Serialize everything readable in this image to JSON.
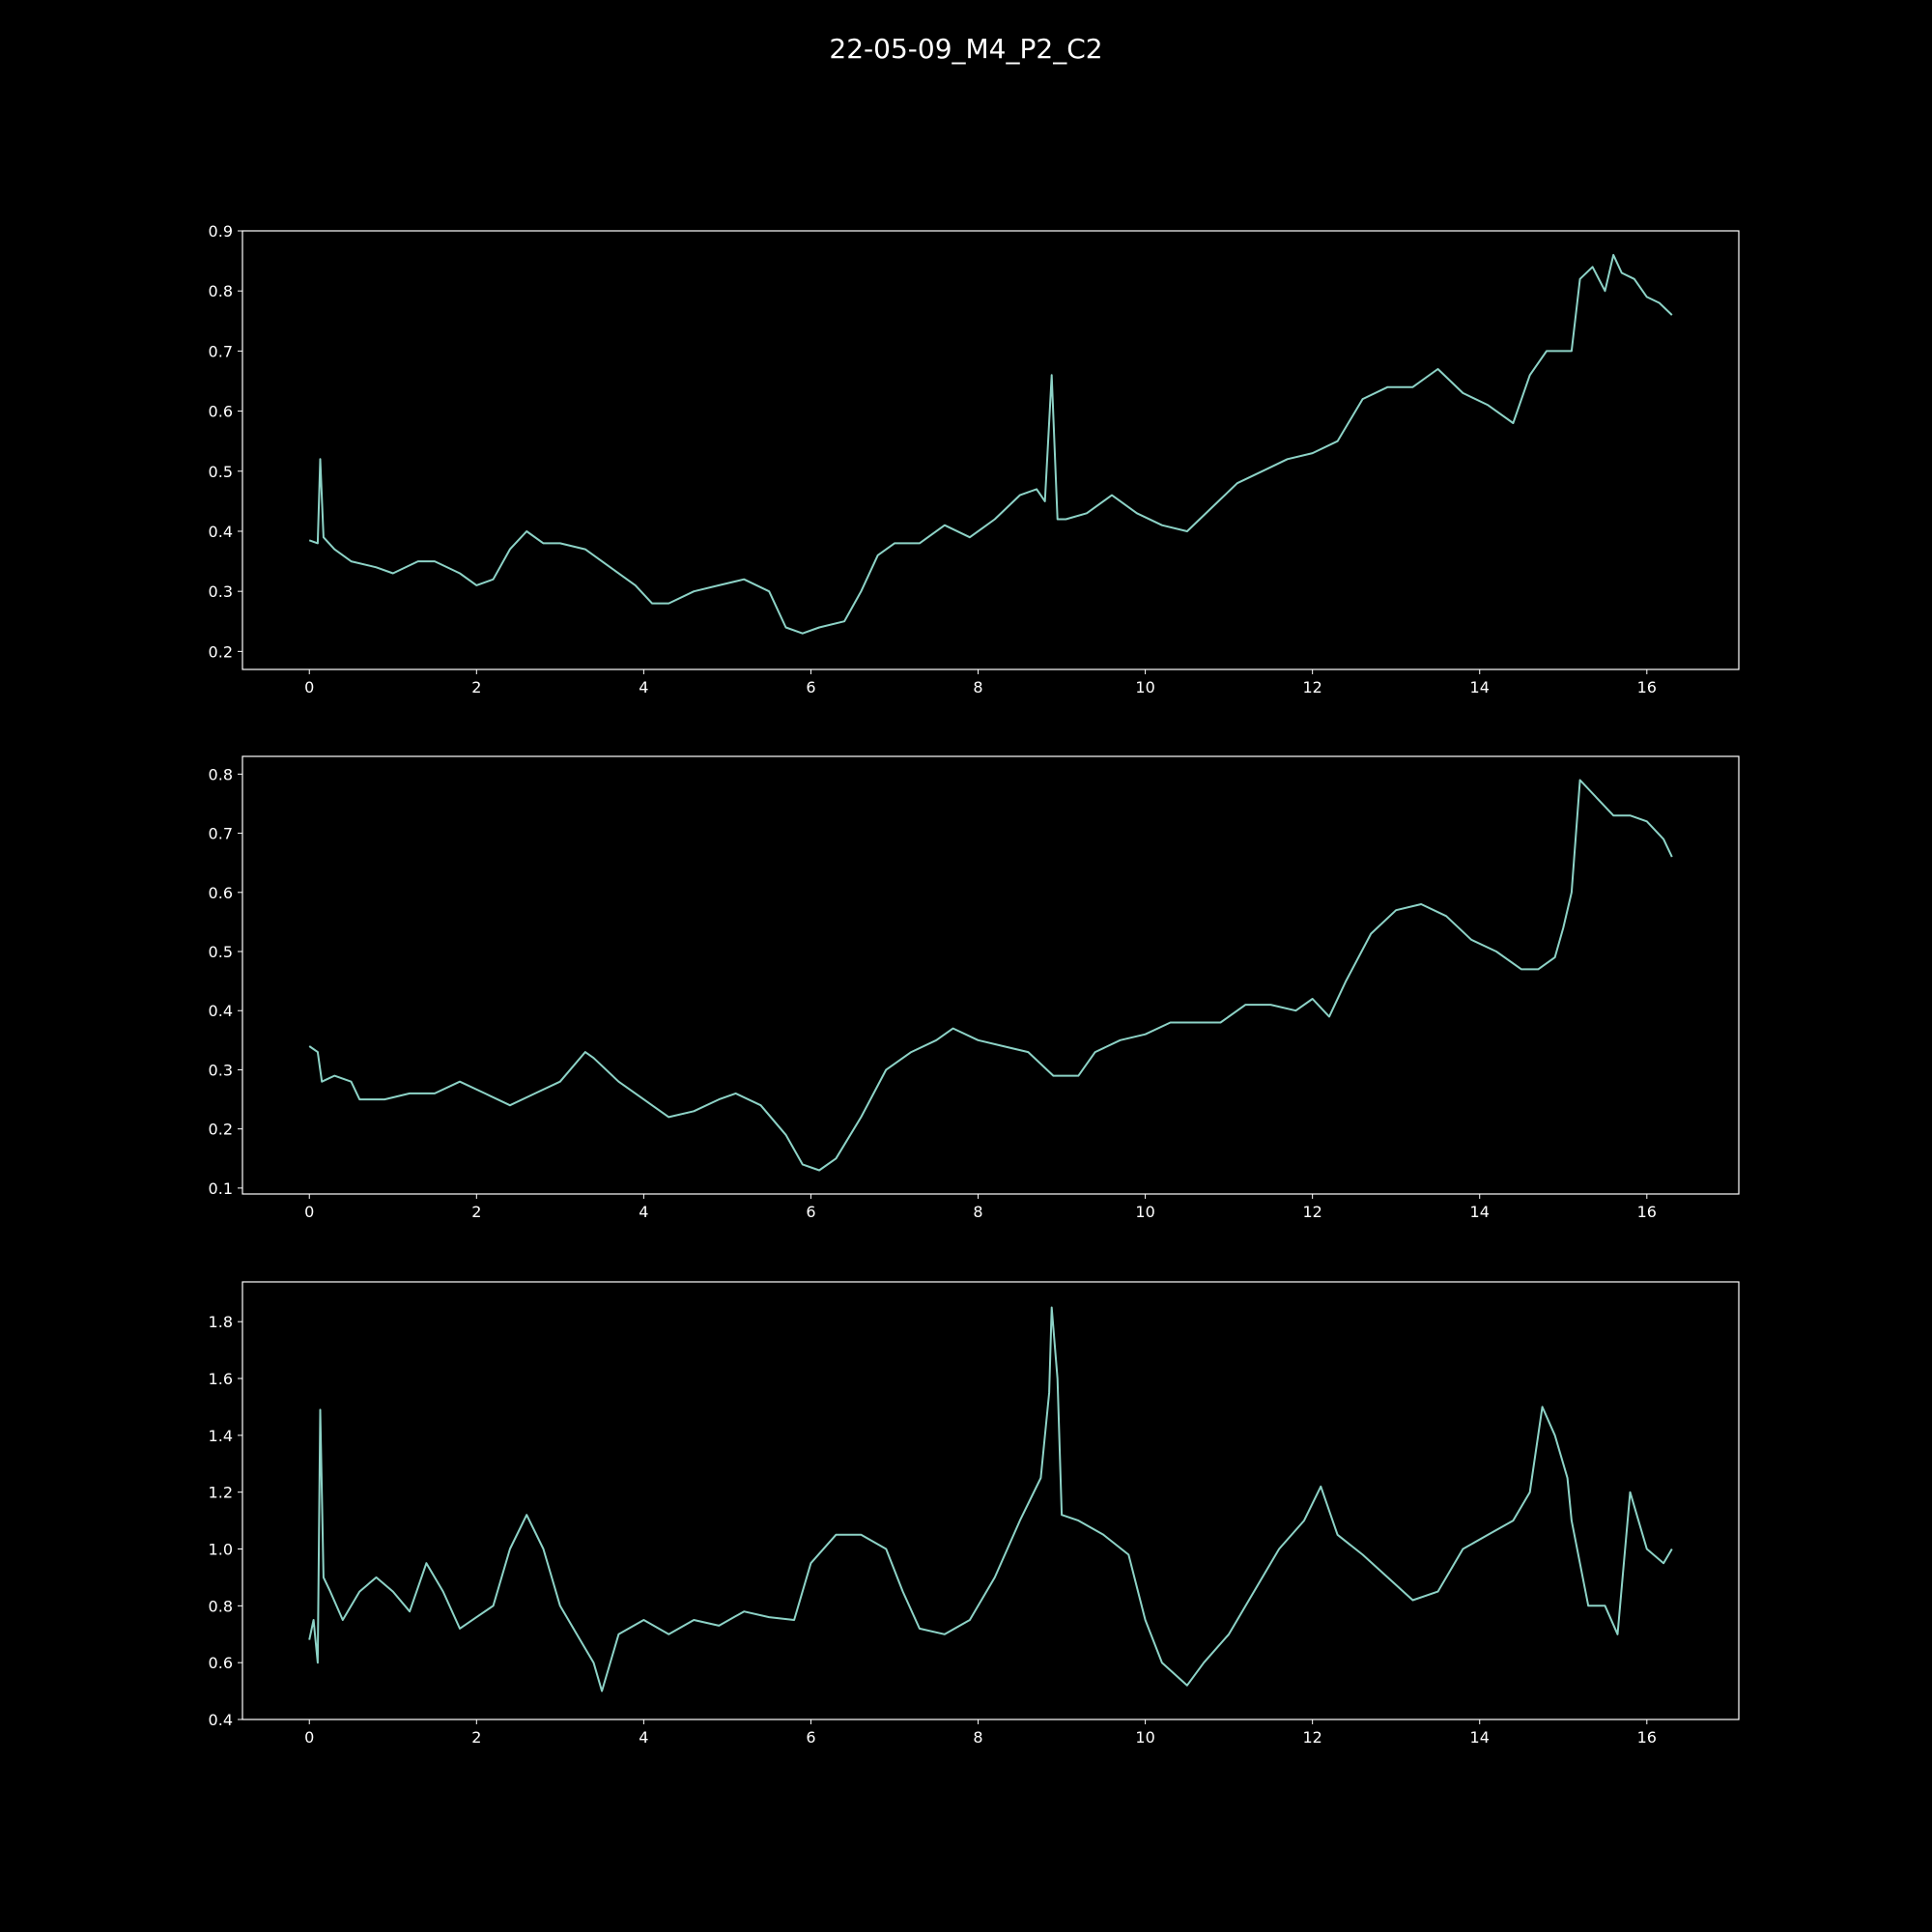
{
  "figure": {
    "title": "22-05-09_M4_P2_C2",
    "background": "#000000",
    "foreground": "#ffffff",
    "line_color": "#8dd3c7"
  },
  "chart_data": [
    {
      "type": "line",
      "xlim": [
        -0.8,
        17.1
      ],
      "ylim": [
        0.17,
        0.9
      ],
      "xticks": [
        0,
        2,
        4,
        6,
        8,
        10,
        12,
        14,
        16
      ],
      "yticks": [
        0.2,
        0.3,
        0.4,
        0.5,
        0.6,
        0.7,
        0.8,
        0.9
      ],
      "ytick_labels": [
        "0.2",
        "0.3",
        "0.4",
        "0.5",
        "0.6",
        "0.7",
        "0.8",
        "0.9"
      ],
      "series": [
        {
          "x": [
            0,
            0.1,
            0.13,
            0.17,
            0.3,
            0.5,
            0.8,
            1.0,
            1.3,
            1.5,
            1.8,
            2.0,
            2.2,
            2.4,
            2.6,
            2.8,
            3.0,
            3.3,
            3.6,
            3.9,
            4.1,
            4.3,
            4.6,
            4.9,
            5.2,
            5.5,
            5.7,
            5.9,
            6.1,
            6.4,
            6.6,
            6.8,
            7.0,
            7.3,
            7.6,
            7.9,
            8.2,
            8.5,
            8.7,
            8.8,
            8.88,
            8.95,
            9.05,
            9.3,
            9.6,
            9.9,
            10.2,
            10.5,
            10.8,
            11.1,
            11.4,
            11.7,
            12.0,
            12.3,
            12.6,
            12.9,
            13.2,
            13.5,
            13.8,
            14.1,
            14.4,
            14.6,
            14.8,
            15.0,
            15.1,
            15.2,
            15.35,
            15.5,
            15.6,
            15.7,
            15.85,
            16.0,
            16.15,
            16.3
          ],
          "y": [
            0.385,
            0.38,
            0.52,
            0.39,
            0.37,
            0.35,
            0.34,
            0.33,
            0.35,
            0.35,
            0.33,
            0.31,
            0.32,
            0.37,
            0.4,
            0.38,
            0.38,
            0.37,
            0.34,
            0.31,
            0.28,
            0.28,
            0.3,
            0.31,
            0.32,
            0.3,
            0.24,
            0.23,
            0.24,
            0.25,
            0.3,
            0.36,
            0.38,
            0.38,
            0.41,
            0.39,
            0.42,
            0.46,
            0.47,
            0.45,
            0.66,
            0.42,
            0.42,
            0.43,
            0.46,
            0.43,
            0.41,
            0.4,
            0.44,
            0.48,
            0.5,
            0.52,
            0.53,
            0.55,
            0.62,
            0.64,
            0.64,
            0.67,
            0.63,
            0.61,
            0.58,
            0.66,
            0.7,
            0.7,
            0.7,
            0.82,
            0.84,
            0.8,
            0.86,
            0.83,
            0.82,
            0.79,
            0.78,
            0.76
          ]
        }
      ]
    },
    {
      "type": "line",
      "xlim": [
        -0.8,
        17.1
      ],
      "ylim": [
        0.09,
        0.83
      ],
      "xticks": [
        0,
        2,
        4,
        6,
        8,
        10,
        12,
        14,
        16
      ],
      "yticks": [
        0.1,
        0.2,
        0.3,
        0.4,
        0.5,
        0.6,
        0.7,
        0.8
      ],
      "ytick_labels": [
        "0.1",
        "0.2",
        "0.3",
        "0.4",
        "0.5",
        "0.6",
        "0.7",
        "0.8"
      ],
      "series": [
        {
          "x": [
            0,
            0.1,
            0.15,
            0.3,
            0.5,
            0.6,
            0.9,
            1.2,
            1.5,
            1.8,
            2.1,
            2.4,
            2.7,
            3.0,
            3.3,
            3.4,
            3.7,
            4.0,
            4.3,
            4.6,
            4.9,
            5.1,
            5.4,
            5.7,
            5.9,
            6.1,
            6.3,
            6.6,
            6.9,
            7.2,
            7.5,
            7.7,
            8.0,
            8.3,
            8.6,
            8.9,
            9.2,
            9.4,
            9.7,
            10.0,
            10.3,
            10.6,
            10.9,
            11.2,
            11.5,
            11.8,
            12.0,
            12.2,
            12.4,
            12.7,
            13.0,
            13.3,
            13.6,
            13.9,
            14.2,
            14.5,
            14.7,
            14.9,
            15.0,
            15.1,
            15.2,
            15.4,
            15.6,
            15.8,
            16.0,
            16.2,
            16.3
          ],
          "y": [
            0.34,
            0.33,
            0.28,
            0.29,
            0.28,
            0.25,
            0.25,
            0.26,
            0.26,
            0.28,
            0.26,
            0.24,
            0.26,
            0.28,
            0.33,
            0.32,
            0.28,
            0.25,
            0.22,
            0.23,
            0.25,
            0.26,
            0.24,
            0.19,
            0.14,
            0.13,
            0.15,
            0.22,
            0.3,
            0.33,
            0.35,
            0.37,
            0.35,
            0.34,
            0.33,
            0.29,
            0.29,
            0.33,
            0.35,
            0.36,
            0.38,
            0.38,
            0.38,
            0.41,
            0.41,
            0.4,
            0.42,
            0.39,
            0.45,
            0.53,
            0.57,
            0.58,
            0.56,
            0.52,
            0.5,
            0.47,
            0.47,
            0.49,
            0.54,
            0.6,
            0.79,
            0.76,
            0.73,
            0.73,
            0.72,
            0.69,
            0.66
          ]
        }
      ]
    },
    {
      "type": "line",
      "xlim": [
        -0.8,
        17.1
      ],
      "ylim": [
        0.4,
        1.94
      ],
      "xticks": [
        0,
        2,
        4,
        6,
        8,
        10,
        12,
        14,
        16
      ],
      "yticks": [
        0.4,
        0.6,
        0.8,
        1.0,
        1.2,
        1.4,
        1.6,
        1.8
      ],
      "ytick_labels": [
        "0.4",
        "0.6",
        "0.8",
        "1.0",
        "1.2",
        "1.4",
        "1.6",
        "1.8"
      ],
      "series": [
        {
          "x": [
            0,
            0.05,
            0.1,
            0.13,
            0.17,
            0.25,
            0.4,
            0.6,
            0.8,
            1.0,
            1.2,
            1.4,
            1.6,
            1.8,
            2.0,
            2.2,
            2.4,
            2.6,
            2.8,
            3.0,
            3.2,
            3.4,
            3.5,
            3.7,
            4.0,
            4.3,
            4.6,
            4.9,
            5.2,
            5.5,
            5.8,
            6.0,
            6.3,
            6.6,
            6.9,
            7.1,
            7.3,
            7.6,
            7.9,
            8.2,
            8.5,
            8.75,
            8.85,
            8.88,
            8.95,
            9.0,
            9.2,
            9.5,
            9.8,
            10.0,
            10.2,
            10.5,
            10.7,
            11.0,
            11.3,
            11.6,
            11.9,
            12.1,
            12.3,
            12.6,
            12.9,
            13.2,
            13.5,
            13.8,
            14.1,
            14.4,
            14.6,
            14.75,
            14.9,
            15.05,
            15.1,
            15.3,
            15.5,
            15.65,
            15.8,
            16.0,
            16.2,
            16.3
          ],
          "y": [
            0.68,
            0.75,
            0.6,
            1.49,
            0.9,
            0.85,
            0.75,
            0.85,
            0.9,
            0.85,
            0.78,
            0.95,
            0.85,
            0.72,
            0.76,
            0.8,
            1.0,
            1.12,
            1.0,
            0.8,
            0.7,
            0.6,
            0.5,
            0.7,
            0.75,
            0.7,
            0.75,
            0.73,
            0.78,
            0.76,
            0.75,
            0.95,
            1.05,
            1.05,
            1.0,
            0.85,
            0.72,
            0.7,
            0.75,
            0.9,
            1.1,
            1.25,
            1.55,
            1.85,
            1.6,
            1.12,
            1.1,
            1.05,
            0.98,
            0.75,
            0.6,
            0.52,
            0.6,
            0.7,
            0.85,
            1.0,
            1.1,
            1.22,
            1.05,
            0.98,
            0.9,
            0.82,
            0.85,
            1.0,
            1.05,
            1.1,
            1.2,
            1.5,
            1.4,
            1.25,
            1.1,
            0.8,
            0.8,
            0.7,
            1.2,
            1.0,
            0.95,
            1.0
          ]
        }
      ]
    }
  ]
}
